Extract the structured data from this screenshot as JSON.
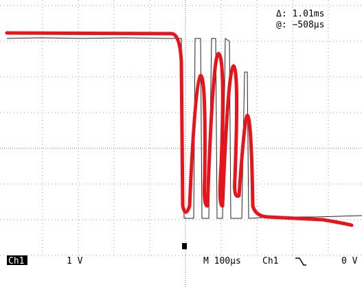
{
  "readout": {
    "delta": "Δ: 1.01ms",
    "at": "@: −508µs"
  },
  "status": {
    "channel_badge": "Ch1",
    "volts_per_div": "1 V",
    "timebase": "M 100µs",
    "trigger_source": "Ch1",
    "trigger_level": "0 V"
  }
}
